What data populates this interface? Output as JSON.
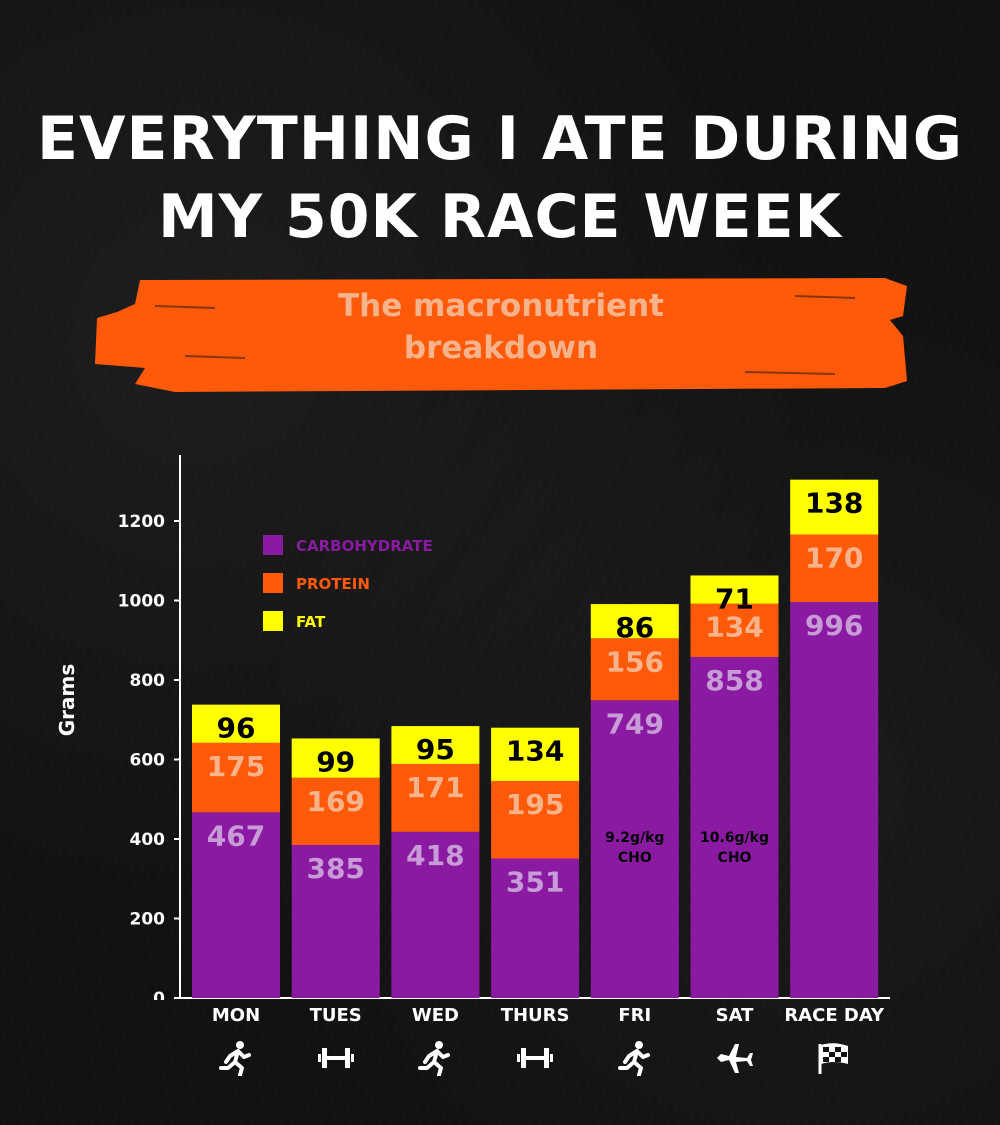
{
  "title_lines": [
    "EVERYTHING I ATE DURING",
    "MY 50K RACE WEEK"
  ],
  "subtitle_lines": [
    "The macronutrient",
    "breakdown"
  ],
  "colors": {
    "carbohydrate": "#8b1aa3",
    "protein": "#ff5a0a",
    "fat": "#ffff00",
    "carb_label": "#c79bd6",
    "protein_label": "#f7b48c",
    "fat_label": "#000000",
    "brush": "#ff5a0a"
  },
  "chart_data": {
    "type": "bar",
    "stacked": true,
    "categories": [
      "MON",
      "TUES",
      "WED",
      "THURS",
      "FRI",
      "SAT",
      "RACE DAY"
    ],
    "series": [
      {
        "name": "CARBOHYDRATE",
        "values": [
          467,
          385,
          418,
          351,
          749,
          858,
          996
        ]
      },
      {
        "name": "PROTEIN",
        "values": [
          175,
          169,
          171,
          195,
          156,
          134,
          170
        ]
      },
      {
        "name": "FAT",
        "values": [
          96,
          99,
          95,
          134,
          86,
          71,
          138
        ]
      }
    ],
    "ylabel": "Grams",
    "ylim": [
      0,
      1300
    ],
    "yticks": [
      0,
      200,
      400,
      600,
      800,
      1000,
      1200
    ],
    "legend_position": "top-left",
    "annotations": [
      {
        "category": "FRI",
        "lines": [
          "9.2g/kg",
          "CHO"
        ]
      },
      {
        "category": "SAT",
        "lines": [
          "10.6g/kg",
          "CHO"
        ]
      }
    ]
  },
  "day_icons": [
    "runner-icon",
    "dumbbell-icon",
    "runner-icon",
    "dumbbell-icon",
    "runner-icon",
    "airplane-icon",
    "checkered-flag-icon"
  ]
}
